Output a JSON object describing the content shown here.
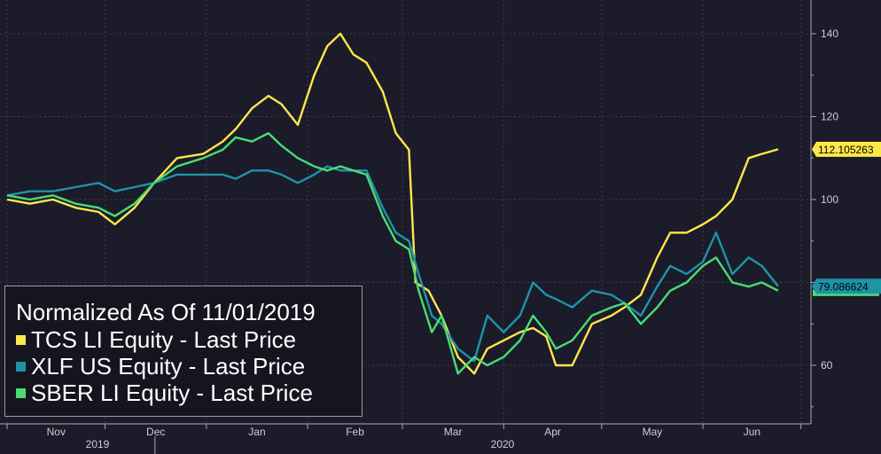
{
  "chart_data": {
    "type": "line",
    "title": "Normalized As Of 11/01/2019",
    "x_ticks": [
      "Nov",
      "Dec",
      "Jan",
      "Feb",
      "Mar",
      "Apr",
      "May",
      "Jun"
    ],
    "x_years": [
      "2019",
      "2020"
    ],
    "y_ticks": [
      60,
      80,
      100,
      120,
      140
    ],
    "y_tick_labels": [
      "60",
      "100",
      "120",
      "140"
    ],
    "ylim": [
      50,
      145
    ],
    "grid": true,
    "legend_position": "bottom-left",
    "last_value_labels": [
      "112.105263",
      "79.086624"
    ],
    "x_range": [
      "2019-11-01",
      "2020-06-30"
    ],
    "series": [
      {
        "name": "TCS LI Equity - Last Price",
        "color": "#ffe74a",
        "points": [
          [
            "2019-11-01",
            100
          ],
          [
            "2019-11-08",
            99
          ],
          [
            "2019-11-15",
            100
          ],
          [
            "2019-11-22",
            98
          ],
          [
            "2019-11-29",
            97
          ],
          [
            "2019-12-04",
            94
          ],
          [
            "2019-12-10",
            98
          ],
          [
            "2019-12-16",
            104
          ],
          [
            "2019-12-23",
            110
          ],
          [
            "2019-12-31",
            111
          ],
          [
            "2020-01-06",
            114
          ],
          [
            "2020-01-10",
            117
          ],
          [
            "2020-01-15",
            122
          ],
          [
            "2020-01-20",
            125
          ],
          [
            "2020-01-24",
            123
          ],
          [
            "2020-01-29",
            118
          ],
          [
            "2020-02-03",
            130
          ],
          [
            "2020-02-07",
            137
          ],
          [
            "2020-02-11",
            140
          ],
          [
            "2020-02-15",
            135
          ],
          [
            "2020-02-19",
            133
          ],
          [
            "2020-02-24",
            126
          ],
          [
            "2020-02-28",
            116
          ],
          [
            "2020-03-03",
            112
          ],
          [
            "2020-03-05",
            80
          ],
          [
            "2020-03-09",
            78
          ],
          [
            "2020-03-13",
            72
          ],
          [
            "2020-03-18",
            62
          ],
          [
            "2020-03-23",
            58
          ],
          [
            "2020-03-27",
            64
          ],
          [
            "2020-04-01",
            66
          ],
          [
            "2020-04-06",
            68
          ],
          [
            "2020-04-10",
            69
          ],
          [
            "2020-04-14",
            67
          ],
          [
            "2020-04-17",
            60
          ],
          [
            "2020-04-22",
            60
          ],
          [
            "2020-04-28",
            70
          ],
          [
            "2020-05-04",
            72
          ],
          [
            "2020-05-08",
            74
          ],
          [
            "2020-05-13",
            77
          ],
          [
            "2020-05-18",
            86
          ],
          [
            "2020-05-22",
            92
          ],
          [
            "2020-05-27",
            92
          ],
          [
            "2020-06-01",
            94
          ],
          [
            "2020-06-05",
            96
          ],
          [
            "2020-06-10",
            100
          ],
          [
            "2020-06-15",
            110
          ],
          [
            "2020-06-19",
            111
          ],
          [
            "2020-06-24",
            112.105263
          ]
        ]
      },
      {
        "name": "XLF US Equity - Last Price",
        "color": "#1f93a8",
        "points": [
          [
            "2019-11-01",
            101
          ],
          [
            "2019-11-08",
            102
          ],
          [
            "2019-11-15",
            102
          ],
          [
            "2019-11-22",
            103
          ],
          [
            "2019-11-29",
            104
          ],
          [
            "2019-12-04",
            102
          ],
          [
            "2019-12-10",
            103
          ],
          [
            "2019-12-16",
            104
          ],
          [
            "2019-12-23",
            106
          ],
          [
            "2019-12-31",
            106
          ],
          [
            "2020-01-06",
            106
          ],
          [
            "2020-01-10",
            105
          ],
          [
            "2020-01-15",
            107
          ],
          [
            "2020-01-20",
            107
          ],
          [
            "2020-01-24",
            106
          ],
          [
            "2020-01-29",
            104
          ],
          [
            "2020-02-03",
            106
          ],
          [
            "2020-02-07",
            108
          ],
          [
            "2020-02-11",
            107
          ],
          [
            "2020-02-15",
            107
          ],
          [
            "2020-02-19",
            107
          ],
          [
            "2020-02-24",
            98
          ],
          [
            "2020-02-28",
            92
          ],
          [
            "2020-03-03",
            90
          ],
          [
            "2020-03-06",
            82
          ],
          [
            "2020-03-10",
            72
          ],
          [
            "2020-03-13",
            70
          ],
          [
            "2020-03-18",
            64
          ],
          [
            "2020-03-23",
            61
          ],
          [
            "2020-03-27",
            72
          ],
          [
            "2020-04-01",
            68
          ],
          [
            "2020-04-06",
            72
          ],
          [
            "2020-04-10",
            80
          ],
          [
            "2020-04-14",
            77
          ],
          [
            "2020-04-17",
            76
          ],
          [
            "2020-04-22",
            74
          ],
          [
            "2020-04-28",
            78
          ],
          [
            "2020-05-04",
            77
          ],
          [
            "2020-05-08",
            75
          ],
          [
            "2020-05-13",
            72
          ],
          [
            "2020-05-18",
            79
          ],
          [
            "2020-05-22",
            84
          ],
          [
            "2020-05-27",
            82
          ],
          [
            "2020-06-01",
            85
          ],
          [
            "2020-06-05",
            92
          ],
          [
            "2020-06-10",
            82
          ],
          [
            "2020-06-15",
            86
          ],
          [
            "2020-06-19",
            84
          ],
          [
            "2020-06-24",
            79.086624
          ]
        ]
      },
      {
        "name": "SBER LI Equity - Last Price",
        "color": "#49dd72",
        "points": [
          [
            "2019-11-01",
            101
          ],
          [
            "2019-11-08",
            100
          ],
          [
            "2019-11-15",
            101
          ],
          [
            "2019-11-22",
            99
          ],
          [
            "2019-11-29",
            98
          ],
          [
            "2019-12-04",
            96
          ],
          [
            "2019-12-10",
            99
          ],
          [
            "2019-12-16",
            104
          ],
          [
            "2019-12-23",
            108
          ],
          [
            "2019-12-31",
            110
          ],
          [
            "2020-01-06",
            112
          ],
          [
            "2020-01-10",
            115
          ],
          [
            "2020-01-15",
            114
          ],
          [
            "2020-01-20",
            116
          ],
          [
            "2020-01-24",
            113
          ],
          [
            "2020-01-29",
            110
          ],
          [
            "2020-02-03",
            108
          ],
          [
            "2020-02-07",
            107
          ],
          [
            "2020-02-11",
            108
          ],
          [
            "2020-02-15",
            107
          ],
          [
            "2020-02-19",
            106
          ],
          [
            "2020-02-24",
            96
          ],
          [
            "2020-02-28",
            90
          ],
          [
            "2020-03-03",
            88
          ],
          [
            "2020-03-06",
            78
          ],
          [
            "2020-03-10",
            68
          ],
          [
            "2020-03-13",
            72
          ],
          [
            "2020-03-18",
            58
          ],
          [
            "2020-03-23",
            62
          ],
          [
            "2020-03-27",
            60
          ],
          [
            "2020-04-01",
            62
          ],
          [
            "2020-04-06",
            66
          ],
          [
            "2020-04-10",
            72
          ],
          [
            "2020-04-14",
            68
          ],
          [
            "2020-04-17",
            64
          ],
          [
            "2020-04-22",
            66
          ],
          [
            "2020-04-28",
            72
          ],
          [
            "2020-05-04",
            74
          ],
          [
            "2020-05-08",
            75
          ],
          [
            "2020-05-13",
            70
          ],
          [
            "2020-05-18",
            74
          ],
          [
            "2020-05-22",
            78
          ],
          [
            "2020-05-27",
            80
          ],
          [
            "2020-06-01",
            84
          ],
          [
            "2020-06-05",
            86
          ],
          [
            "2020-06-10",
            80
          ],
          [
            "2020-06-15",
            79
          ],
          [
            "2020-06-19",
            80
          ],
          [
            "2020-06-24",
            78
          ]
        ]
      }
    ]
  }
}
